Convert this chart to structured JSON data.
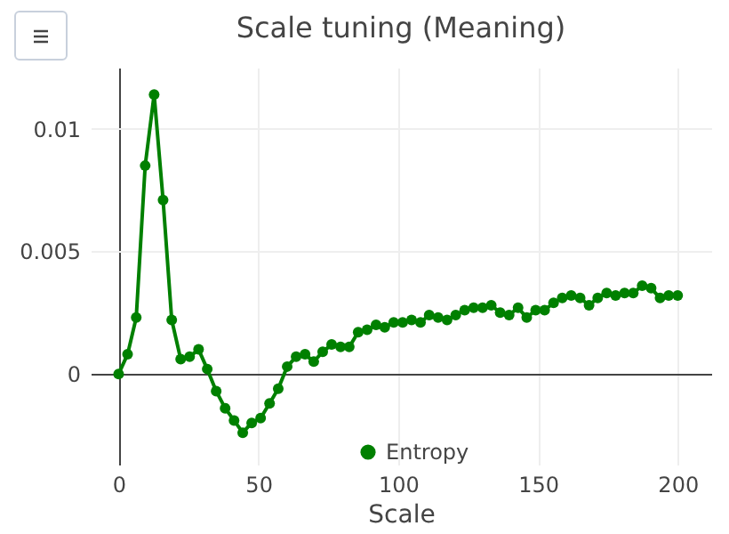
{
  "chart_data": {
    "type": "line",
    "title": "Scale tuning (Meaning)",
    "xlabel": "Scale",
    "x": [
      0,
      3.2,
      6.3,
      9.5,
      12.7,
      15.9,
      19,
      22.2,
      25.4,
      28.6,
      31.7,
      34.9,
      38.1,
      41.3,
      44.4,
      47.6,
      50.8,
      54,
      57.1,
      60.3,
      63.5,
      66.7,
      69.8,
      73,
      76.2,
      79.4,
      82.5,
      85.7,
      88.9,
      92.1,
      95.2,
      98.4,
      101.6,
      104.8,
      108,
      111.1,
      114.3,
      117.5,
      120.6,
      123.8,
      127,
      130.2,
      133.3,
      136.5,
      139.7,
      142.9,
      146,
      149.2,
      152.4,
      155.6,
      158.7,
      161.9,
      165.1,
      168.3,
      171.4,
      174.6,
      177.8,
      181,
      184.1,
      187.3,
      190.5,
      193.7,
      196.8,
      200
    ],
    "series": [
      {
        "name": "Entropy",
        "color": "#008000",
        "values": [
          0,
          0.0008,
          0.0023,
          0.0085,
          0.0114,
          0.0071,
          0.0022,
          0.0006,
          0.0007,
          0.001,
          0.0002,
          -0.0007,
          -0.0014,
          -0.0019,
          -0.0024,
          -0.002,
          -0.0018,
          -0.0012,
          -0.0006,
          0.0003,
          0.0007,
          0.0008,
          0.0005,
          0.0009,
          0.0012,
          0.0011,
          0.0011,
          0.0017,
          0.0018,
          0.002,
          0.0019,
          0.0021,
          0.0021,
          0.0022,
          0.0021,
          0.0024,
          0.0023,
          0.0022,
          0.0024,
          0.0026,
          0.0027,
          0.0027,
          0.0028,
          0.0025,
          0.0024,
          0.0027,
          0.0023,
          0.0026,
          0.0026,
          0.0029,
          0.0031,
          0.0032,
          0.0031,
          0.0028,
          0.0031,
          0.0033,
          0.0032,
          0.0033,
          0.0033,
          0.0036,
          0.0035,
          0.0031,
          0.0032,
          0.0032
        ]
      }
    ],
    "xlim": [
      -10,
      212
    ],
    "ylim": [
      -0.0037,
      0.0125
    ],
    "xticks": [
      0,
      50,
      100,
      150,
      200
    ],
    "yticks": [
      0,
      0.005,
      0.01
    ],
    "grid": true,
    "legend": "bottom",
    "marker": "circle",
    "line_style": "solid"
  }
}
